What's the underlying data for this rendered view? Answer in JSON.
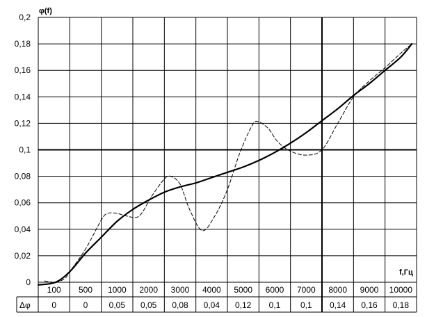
{
  "chart_data": {
    "type": "line",
    "title": "",
    "ylabel": "φ(f)",
    "xlabel": "f,Гц",
    "ylim": [
      0,
      0.2
    ],
    "y_ticks": [
      "0",
      "0,02",
      "0,04",
      "0,06",
      "0,08",
      "0,1",
      "0,12",
      "0,14",
      "0,16",
      "0,18",
      "0,2"
    ],
    "grid": true,
    "legend": "none",
    "categories": [
      "100",
      "500",
      "1000",
      "2000",
      "3000",
      "4000",
      "5000",
      "6000",
      "7000",
      "8000",
      "9000",
      "10000"
    ],
    "table": {
      "row_label": "Δφ",
      "values": [
        "0",
        "0",
        "0,05",
        "0,05",
        "0,08",
        "0,04",
        "0,12",
        "0,1",
        "0,1",
        "0,14",
        "0,16",
        "0,18"
      ]
    },
    "series": [
      {
        "style": "solid",
        "color": "#000000",
        "points": [
          [
            0.0,
            -0.002
          ],
          [
            0.55,
            0.0
          ],
          [
            1.0,
            0.008
          ],
          [
            1.5,
            0.022
          ],
          [
            2.0,
            0.034
          ],
          [
            2.5,
            0.046
          ],
          [
            3.0,
            0.055
          ],
          [
            3.5,
            0.062
          ],
          [
            4.0,
            0.068
          ],
          [
            4.5,
            0.072
          ],
          [
            5.0,
            0.075
          ],
          [
            5.5,
            0.079
          ],
          [
            6.0,
            0.083
          ],
          [
            6.5,
            0.087
          ],
          [
            7.0,
            0.092
          ],
          [
            7.5,
            0.098
          ],
          [
            8.0,
            0.105
          ],
          [
            8.5,
            0.113
          ],
          [
            9.0,
            0.122
          ],
          [
            9.5,
            0.131
          ],
          [
            10.0,
            0.141
          ],
          [
            10.5,
            0.15
          ],
          [
            11.0,
            0.16
          ],
          [
            11.5,
            0.17
          ],
          [
            11.85,
            0.18
          ]
        ]
      },
      {
        "style": "dashed",
        "color": "#000000",
        "points": [
          [
            0.2,
            0.001
          ],
          [
            0.45,
            0.0
          ],
          [
            0.6,
            0.0
          ],
          [
            0.85,
            0.003
          ],
          [
            1.0,
            0.008
          ],
          [
            1.5,
            0.025
          ],
          [
            2.0,
            0.047
          ],
          [
            2.2,
            0.052
          ],
          [
            2.5,
            0.052
          ],
          [
            2.8,
            0.05
          ],
          [
            3.2,
            0.05
          ],
          [
            3.6,
            0.065
          ],
          [
            4.0,
            0.078
          ],
          [
            4.2,
            0.08
          ],
          [
            4.5,
            0.074
          ],
          [
            4.8,
            0.055
          ],
          [
            5.2,
            0.039
          ],
          [
            5.6,
            0.05
          ],
          [
            6.0,
            0.07
          ],
          [
            6.4,
            0.098
          ],
          [
            6.8,
            0.119
          ],
          [
            7.0,
            0.121
          ],
          [
            7.3,
            0.116
          ],
          [
            7.6,
            0.106
          ],
          [
            8.0,
            0.099
          ],
          [
            8.5,
            0.096
          ],
          [
            9.0,
            0.1
          ],
          [
            9.5,
            0.12
          ],
          [
            10.0,
            0.14
          ],
          [
            10.5,
            0.152
          ],
          [
            11.0,
            0.162
          ],
          [
            11.5,
            0.173
          ],
          [
            11.85,
            0.18
          ]
        ]
      }
    ]
  }
}
